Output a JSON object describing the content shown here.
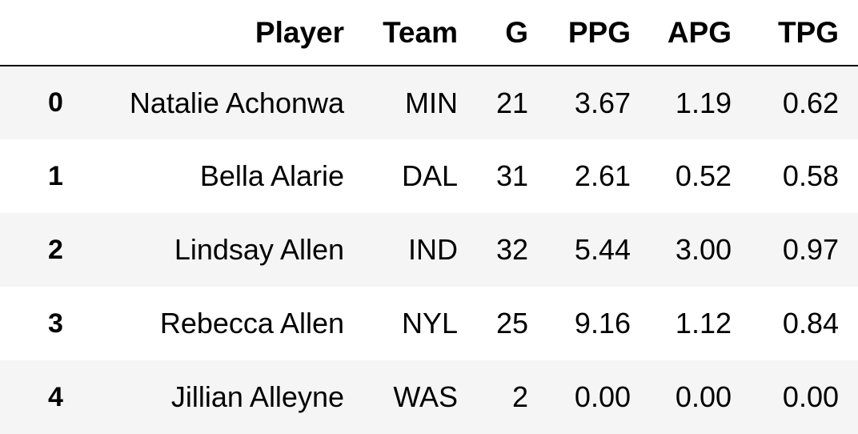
{
  "table": {
    "columns": [
      "Player",
      "Team",
      "G",
      "PPG",
      "APG",
      "TPG"
    ],
    "rows": [
      {
        "index": "0",
        "cells": [
          "Natalie Achonwa",
          "MIN",
          "21",
          "3.67",
          "1.19",
          "0.62"
        ]
      },
      {
        "index": "1",
        "cells": [
          "Bella Alarie",
          "DAL",
          "31",
          "2.61",
          "0.52",
          "0.58"
        ]
      },
      {
        "index": "2",
        "cells": [
          "Lindsay Allen",
          "IND",
          "32",
          "5.44",
          "3.00",
          "0.97"
        ]
      },
      {
        "index": "3",
        "cells": [
          "Rebecca Allen",
          "NYL",
          "25",
          "9.16",
          "1.12",
          "0.84"
        ]
      },
      {
        "index": "4",
        "cells": [
          "Jillian Alleyne",
          "WAS",
          "2",
          "0.00",
          "0.00",
          "0.00"
        ]
      }
    ]
  }
}
